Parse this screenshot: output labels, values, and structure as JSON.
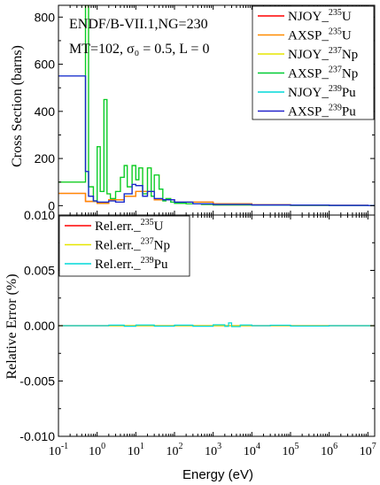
{
  "chart_data": [
    {
      "type": "line",
      "annotation_lines": [
        "ENDF/B-VII.1,NG=230",
        "MT=102, σ₀ = 0.5, L = 0"
      ],
      "ylabel": "Cross Section (barns)",
      "xscale": "log",
      "xlim": [
        0.1,
        15000000
      ],
      "ylim": [
        -40,
        850
      ],
      "yticks": [
        0,
        200,
        400,
        600,
        800
      ],
      "ytick_labels": [
        "0",
        "200",
        "400",
        "600",
        "800"
      ],
      "legend_position": "top-right",
      "series": [
        {
          "name": "NJOY_235U",
          "legend_main": "NJOY_",
          "legend_sup": "235",
          "legend_tail": "U",
          "color": "#ff0000",
          "x": [
            0.1,
            0.45,
            0.5,
            1,
            2,
            5,
            10,
            30,
            100,
            1000,
            10000,
            100000,
            1000000,
            10000000,
            15000000
          ],
          "y": [
            52,
            52,
            18,
            10,
            25,
            40,
            60,
            25,
            15,
            8,
            4,
            2,
            1,
            0.5,
            0.5
          ]
        },
        {
          "name": "AXSP_235U",
          "legend_main": "AXSP_",
          "legend_sup": "235",
          "legend_tail": "U",
          "color": "#ff8c00",
          "x": [
            0.1,
            0.45,
            0.5,
            1,
            2,
            5,
            10,
            30,
            100,
            1000,
            10000,
            100000,
            1000000,
            10000000,
            15000000
          ],
          "y": [
            52,
            52,
            18,
            10,
            25,
            40,
            60,
            25,
            15,
            8,
            4,
            2,
            1,
            0.5,
            0.5
          ]
        },
        {
          "name": "NJOY_237Np",
          "legend_main": "NJOY_",
          "legend_sup": "237",
          "legend_tail": "Np",
          "color": "#e6e600",
          "x": [
            0.1,
            0.45,
            0.5,
            0.6,
            0.8,
            1,
            1.2,
            1.5,
            1.8,
            2.2,
            3,
            4,
            5,
            6,
            8,
            10,
            12,
            15,
            20,
            25,
            30,
            40,
            50,
            60,
            80,
            100,
            200,
            500,
            1000,
            10000,
            100000,
            1000000,
            10000000,
            15000000
          ],
          "y": [
            100,
            100,
            850,
            80,
            20,
            250,
            60,
            450,
            50,
            30,
            60,
            120,
            170,
            80,
            170,
            110,
            160,
            50,
            160,
            40,
            130,
            70,
            20,
            30,
            15,
            10,
            8,
            5,
            3,
            2,
            1,
            0.5,
            0.5,
            0.5
          ]
        },
        {
          "name": "AXSP_237Np",
          "legend_main": "AXSP_",
          "legend_sup": "237",
          "legend_tail": "Np",
          "color": "#00cc33",
          "x": [
            0.1,
            0.45,
            0.5,
            0.6,
            0.8,
            1,
            1.2,
            1.5,
            1.8,
            2.2,
            3,
            4,
            5,
            6,
            8,
            10,
            12,
            15,
            20,
            25,
            30,
            40,
            50,
            60,
            80,
            100,
            200,
            500,
            1000,
            10000,
            100000,
            1000000,
            10000000,
            15000000
          ],
          "y": [
            100,
            100,
            850,
            80,
            20,
            250,
            60,
            450,
            50,
            30,
            60,
            120,
            170,
            80,
            170,
            110,
            160,
            50,
            160,
            40,
            130,
            70,
            20,
            30,
            15,
            10,
            8,
            5,
            3,
            2,
            1,
            0.5,
            0.5,
            0.5
          ]
        },
        {
          "name": "NJOY_239Pu",
          "legend_main": "NJOY_",
          "legend_sup": "239",
          "legend_tail": "Pu",
          "color": "#00d8d8",
          "x": [
            0.1,
            0.45,
            0.5,
            0.6,
            0.8,
            1,
            2,
            3,
            5,
            8,
            10,
            15,
            20,
            30,
            50,
            100,
            300,
            1000,
            10000,
            100000,
            1000000,
            10000000,
            15000000
          ],
          "y": [
            550,
            550,
            145,
            40,
            20,
            15,
            20,
            15,
            50,
            90,
            85,
            40,
            60,
            30,
            25,
            15,
            8,
            5,
            3,
            2,
            1,
            0.5,
            0.5
          ]
        },
        {
          "name": "AXSP_239Pu",
          "legend_main": "AXSP_",
          "legend_sup": "239",
          "legend_tail": "Pu",
          "color": "#2222cc",
          "x": [
            0.1,
            0.45,
            0.5,
            0.6,
            0.8,
            1,
            2,
            3,
            5,
            8,
            10,
            15,
            20,
            30,
            50,
            100,
            300,
            1000,
            10000,
            100000,
            1000000,
            10000000,
            15000000
          ],
          "y": [
            550,
            550,
            145,
            40,
            20,
            15,
            20,
            15,
            50,
            90,
            85,
            40,
            60,
            30,
            25,
            15,
            8,
            5,
            3,
            2,
            1,
            0.5,
            0.5
          ]
        }
      ]
    },
    {
      "type": "line",
      "xlabel": "Energy (eV)",
      "ylabel": "Relative Error (%)",
      "xscale": "log",
      "xlim": [
        0.1,
        15000000
      ],
      "ylim": [
        -0.01,
        0.01
      ],
      "yticks": [
        -0.01,
        -0.005,
        0,
        0.005,
        0.01
      ],
      "ytick_labels": [
        "-0.010",
        "-0.005",
        "0.000",
        "0.005",
        "0.010"
      ],
      "xticks": [
        0.1,
        1,
        10,
        100,
        1000,
        10000,
        100000,
        1000000,
        10000000
      ],
      "xtick_labels": [
        {
          "base": "10",
          "exp": "-1"
        },
        {
          "base": "10",
          "exp": "0"
        },
        {
          "base": "10",
          "exp": "1"
        },
        {
          "base": "10",
          "exp": "2"
        },
        {
          "base": "10",
          "exp": "3"
        },
        {
          "base": "10",
          "exp": "4"
        },
        {
          "base": "10",
          "exp": "5"
        },
        {
          "base": "10",
          "exp": "6"
        },
        {
          "base": "10",
          "exp": "7"
        }
      ],
      "legend_position": "top-left",
      "series": [
        {
          "name": "Rel.err._235U",
          "legend_main": "Rel.err._",
          "legend_sup": "235",
          "legend_tail": "U",
          "color": "#ff0000",
          "x": [
            0.1,
            1,
            10,
            100,
            1000,
            10000,
            100000,
            1000000,
            10000000,
            15000000
          ],
          "y": [
            0,
            0,
            0,
            0,
            0,
            0,
            0,
            0,
            0,
            0
          ]
        },
        {
          "name": "Rel.err._237Np",
          "legend_main": "Rel.err._",
          "legend_sup": "237",
          "legend_tail": "Np",
          "color": "#e6e600",
          "x": [
            0.1,
            1,
            10,
            100,
            1000,
            10000,
            100000,
            1000000,
            10000000,
            15000000
          ],
          "y": [
            0,
            0,
            0,
            0,
            0,
            0,
            0,
            0,
            0,
            0
          ]
        },
        {
          "name": "Rel.err._239Pu",
          "legend_main": "Rel.err._",
          "legend_sup": "239",
          "legend_tail": "Pu",
          "color": "#00d8d8",
          "x": [
            0.1,
            1,
            2,
            5,
            10,
            30,
            100,
            300,
            1000,
            2000,
            2500,
            3000,
            5000,
            10000,
            30000,
            100000,
            1000000,
            10000000,
            15000000
          ],
          "y": [
            0,
            0,
            5e-05,
            -5e-05,
            6e-05,
            -4e-05,
            5e-05,
            -5e-05,
            8e-05,
            -6e-05,
            0.00025,
            -8e-05,
            6e-05,
            0,
            4e-05,
            -3e-05,
            0,
            0,
            0
          ]
        }
      ]
    }
  ]
}
